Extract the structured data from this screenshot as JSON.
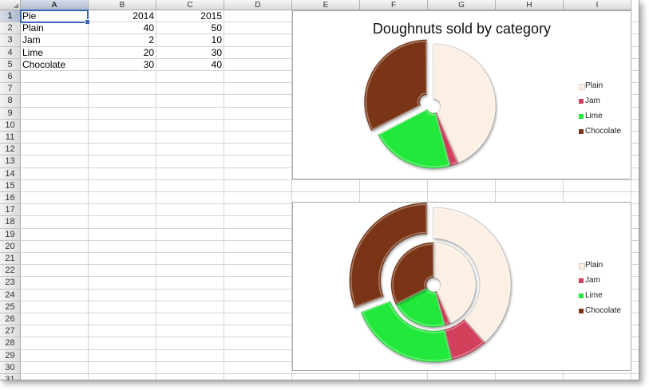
{
  "sheet": {
    "columns": [
      "A",
      "B",
      "C",
      "D",
      "E",
      "F",
      "G",
      "H",
      "I"
    ],
    "selected_column": "A",
    "selected_row": "1",
    "rows": [
      "1",
      "2",
      "3",
      "4",
      "5",
      "6",
      "7",
      "8",
      "9",
      "10",
      "11",
      "12",
      "13",
      "14",
      "15",
      "16",
      "17",
      "18",
      "19",
      "20",
      "21",
      "22",
      "23",
      "24",
      "25",
      "26",
      "27",
      "28",
      "29",
      "30",
      "31"
    ],
    "header": {
      "label": "Pie",
      "year1": "2014",
      "year2": "2015"
    },
    "data": [
      {
        "label": "Plain",
        "v2014": "40",
        "v2015": "50"
      },
      {
        "label": "Jam",
        "v2014": "2",
        "v2015": "10"
      },
      {
        "label": "Lime",
        "v2014": "20",
        "v2015": "30"
      },
      {
        "label": "Chocolate",
        "v2014": "30",
        "v2015": "40"
      }
    ]
  },
  "chart1": {
    "title": "Doughnuts sold by category",
    "legend": [
      "Plain",
      "Jam",
      "Lime",
      "Chocolate"
    ]
  },
  "chart2": {
    "title": "",
    "legend": [
      "Plain",
      "Jam",
      "Lime",
      "Chocolate"
    ]
  },
  "colors": {
    "Plain": "#fcefe3",
    "Jam": "#d23f5c",
    "Lime": "#24e83a",
    "Chocolate": "#7a3412",
    "selection": "#3c64b4"
  },
  "chart_data": [
    {
      "type": "pie",
      "title": "Doughnuts sold by category",
      "categories": [
        "Plain",
        "Jam",
        "Lime",
        "Chocolate"
      ],
      "series": [
        {
          "name": "2014",
          "values": [
            40,
            2,
            20,
            30
          ]
        }
      ],
      "legend": "right",
      "exploded": "Chocolate"
    },
    {
      "type": "pie",
      "title": "",
      "categories": [
        "Plain",
        "Jam",
        "Lime",
        "Chocolate"
      ],
      "series": [
        {
          "name": "2014",
          "values": [
            40,
            2,
            20,
            30
          ]
        },
        {
          "name": "2015",
          "values": [
            50,
            10,
            30,
            40
          ]
        }
      ],
      "legend": "right",
      "exploded": "Chocolate"
    }
  ]
}
